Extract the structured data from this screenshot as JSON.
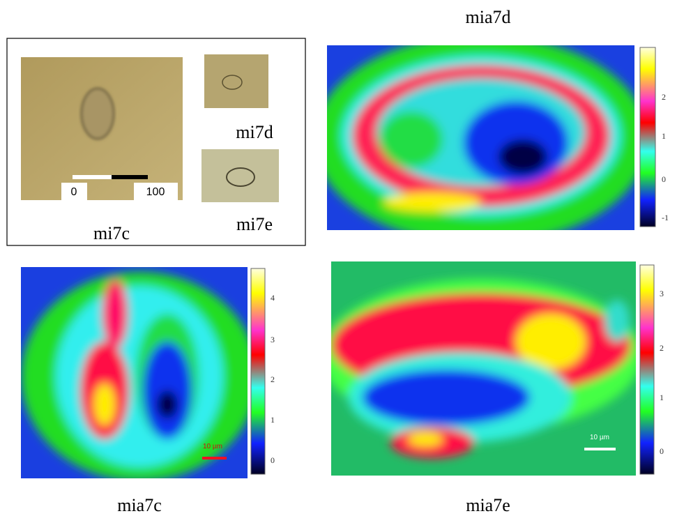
{
  "inset": {
    "photos": [
      {
        "label": "mi7c",
        "scale_labels": [
          "0",
          "100"
        ]
      },
      {
        "label": "mi7d"
      },
      {
        "label": "mi7e"
      }
    ]
  },
  "maps": [
    {
      "title": "mia7d",
      "colorbar_ticks": [
        2,
        1,
        0,
        -1
      ]
    },
    {
      "title": "mia7c",
      "colorbar_ticks": [
        4,
        3,
        2,
        1,
        0
      ],
      "scale_bar": "10 µm"
    },
    {
      "title": "mia7e",
      "colorbar_ticks": [
        3,
        2,
        1,
        0
      ],
      "scale_bar": "10 µm"
    }
  ]
}
